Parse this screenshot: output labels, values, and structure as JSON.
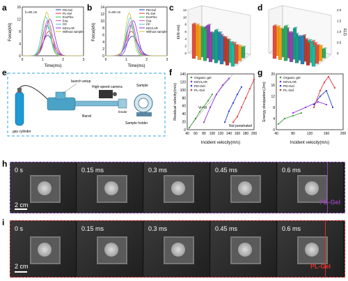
{
  "panel_letters": [
    "a",
    "b",
    "c",
    "d",
    "e",
    "f",
    "g",
    "h",
    "i"
  ],
  "colors": {
    "pd_gel": "#1f3bd1",
    "pl_gel": "#e0323c",
    "ecoflex": "#2fbf5a",
    "eva": "#d24bd6",
    "pp": "#3fb8e6",
    "kevlar": "#8a2be2",
    "without": "#c8c83a",
    "organic": "#3a9c3a",
    "strip_h_border": "#9b59d0",
    "strip_i_border": "#e03030"
  },
  "chart_a": {
    "ylabel": "Force(kN)",
    "xlabel": "Time(ms)",
    "annotation": "h=90 cm",
    "xticks": [
      "0",
      "1",
      "2",
      "3"
    ],
    "yticks": [
      "0",
      "4",
      "8",
      "12",
      "16"
    ],
    "legend": [
      "PD-Gel",
      "PL-Gel",
      "EcoFlex",
      "Eva",
      "PP",
      "KEVLAR",
      "Without sample"
    ]
  },
  "chart_b": {
    "ylabel": "Force(kN)",
    "xlabel": "Time(ms)",
    "annotation": "h=90 cm",
    "xticks": [
      "0",
      "1",
      "2",
      "3"
    ],
    "yticks": [
      "0",
      "2",
      "4",
      "6",
      "8",
      "10",
      "12",
      "14"
    ],
    "legend": [
      "PD-Gel",
      "PL-Gel",
      "EcoFlex",
      "Eva",
      "PP",
      "KEVLAR",
      "Without sample"
    ]
  },
  "chart_c": {
    "ylabel": "I(kN·ms)",
    "zticks": [
      "0",
      "2",
      "4",
      "6",
      "8",
      "10",
      "12"
    ]
  },
  "chart_d": {
    "ylabel": "E(J)",
    "zticks": [
      "0",
      "0.5",
      "1.0",
      "1.5",
      "2.0"
    ]
  },
  "diagram_e": {
    "launch_setup": "launch setup",
    "camera": "High-speed camera",
    "barrel": "Barrel",
    "sample": "Sample",
    "sample_holder": "Sample holder",
    "gas_cylinder": "gas cylinder",
    "fender": "fender"
  },
  "chart_f": {
    "type": "line",
    "ylabel": "Residual velocity(m/s)",
    "xlabel": "Incident velocity(m/s)",
    "xticks": [
      "40",
      "60",
      "80",
      "100",
      "120",
      "140",
      "160",
      "180",
      "200"
    ],
    "yticks": [
      "0",
      "20",
      "40",
      "60",
      "80",
      "100",
      "120",
      "140"
    ],
    "xlim": [
      40,
      200
    ],
    "ylim": [
      0,
      150
    ],
    "legend": [
      "Organic gel",
      "KEVLAR",
      "PD-Gel",
      "PL-Gel"
    ],
    "annotation_vr": "Vr=Vi",
    "annotation_np": "Not penetrated",
    "series": [
      {
        "name": "Organic gel",
        "points": [
          [
            45,
            5
          ],
          [
            60,
            30
          ],
          [
            70,
            48
          ],
          [
            80,
            62
          ],
          [
            90,
            78
          ],
          [
            100,
            95
          ]
        ]
      },
      {
        "name": "KEVLAR",
        "points": [
          [
            80,
            20
          ],
          [
            95,
            60
          ],
          [
            110,
            95
          ],
          [
            125,
            120
          ],
          [
            140,
            138
          ]
        ]
      },
      {
        "name": "PD-Gel",
        "points": [
          [
            130,
            20
          ],
          [
            140,
            50
          ],
          [
            150,
            72
          ],
          [
            160,
            95
          ],
          [
            170,
            115
          ]
        ]
      },
      {
        "name": "PL-Gel",
        "points": [
          [
            150,
            20
          ],
          [
            160,
            35
          ],
          [
            170,
            60
          ],
          [
            180,
            85
          ],
          [
            190,
            110
          ],
          [
            200,
            135
          ]
        ]
      }
    ]
  },
  "chart_g": {
    "type": "line",
    "ylabel": "Energy dissipation(J/m)",
    "xlabel": "Incident velocity(m/s)",
    "xticks": [
      "40",
      "80",
      "120",
      "160",
      "200"
    ],
    "yticks": [
      "0",
      "4",
      "8",
      "12",
      "16",
      "20"
    ],
    "xlim": [
      40,
      200
    ],
    "ylim": [
      0,
      20
    ],
    "legend": [
      "Organic gel",
      "KEVLAR",
      "PD-Gel",
      "PL-Gel"
    ],
    "series": [
      {
        "name": "Organic gel",
        "points": [
          [
            45,
            2
          ],
          [
            60,
            4
          ],
          [
            80,
            5
          ],
          [
            100,
            6
          ]
        ]
      },
      {
        "name": "KEVLAR",
        "points": [
          [
            80,
            6
          ],
          [
            110,
            8
          ],
          [
            140,
            10
          ],
          [
            160,
            9
          ]
        ]
      },
      {
        "name": "PD-Gel",
        "points": [
          [
            130,
            9
          ],
          [
            145,
            12
          ],
          [
            160,
            14
          ],
          [
            175,
            8
          ]
        ]
      },
      {
        "name": "PL-Gel",
        "points": [
          [
            130,
            8
          ],
          [
            145,
            14
          ],
          [
            155,
            17
          ],
          [
            165,
            19
          ],
          [
            180,
            15
          ]
        ]
      }
    ]
  },
  "strip_h": {
    "times": [
      "0 s",
      "0.15 ms",
      "0.3 ms",
      "0.45 ms",
      "0.6 ms"
    ],
    "scale": "2 cm",
    "label": "PD-Gel"
  },
  "strip_i": {
    "times": [
      "0 s",
      "0.15 ms",
      "0.3 ms",
      "0.45 ms",
      "0.6 ms"
    ],
    "scale": "2 cm",
    "label": "PL-Gel"
  }
}
